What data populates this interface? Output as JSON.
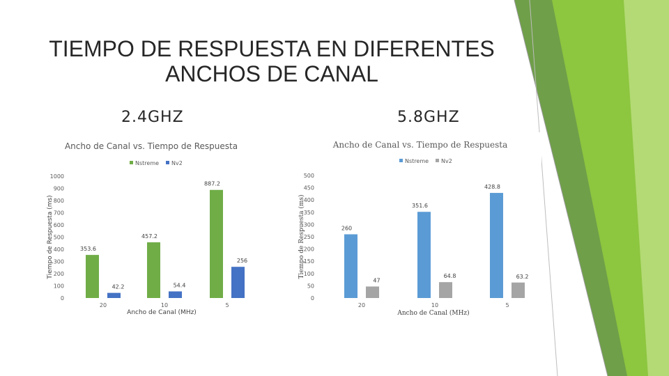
{
  "slide": {
    "title_line1": "TIEMPO DE RESPUESTA EN DIFERENTES",
    "title_line2": "ANCHOS DE CANAL",
    "subtitle_left": "2.4GHZ",
    "subtitle_right": "5.8GHZ",
    "accent_colors": [
      "#8dc63f",
      "#6fa33c",
      "#b7dc7a"
    ]
  },
  "chart_data": [
    {
      "type": "bar",
      "title": "Ancho de Canal vs. Tiempo de Respuesta",
      "xlabel": "Ancho de Canal (MHz)",
      "ylabel": "Tiempo de Respuesta (ms)",
      "categories": [
        "20",
        "10",
        "5"
      ],
      "ylim": [
        0,
        1000
      ],
      "yticks": [
        0,
        100,
        200,
        300,
        400,
        500,
        600,
        700,
        800,
        900,
        1000
      ],
      "legend": "top-center",
      "grid": false,
      "series": [
        {
          "name": "Nstreme",
          "color": "#70ad47",
          "values": [
            353.6,
            457.2,
            887.2
          ],
          "labels": [
            "353.6",
            "457.2",
            "887.2"
          ]
        },
        {
          "name": "Nv2",
          "color": "#4472c4",
          "values": [
            42.2,
            54.4,
            256
          ],
          "labels": [
            "42.2",
            "54.4",
            "256"
          ]
        }
      ]
    },
    {
      "type": "bar",
      "title": "Ancho de Canal vs. Tiempo de Respuesta",
      "xlabel": "Ancho de Canal (MHz)",
      "ylabel": "Tiempo de Respuesta (ms)",
      "categories": [
        "20",
        "10",
        "5"
      ],
      "ylim": [
        0,
        500
      ],
      "yticks": [
        0,
        50,
        100,
        150,
        200,
        250,
        300,
        350,
        400,
        450,
        500
      ],
      "legend": "top-right",
      "grid": false,
      "series": [
        {
          "name": "Nstreme",
          "color": "#5b9bd5",
          "values": [
            260,
            351.6,
            428.8
          ],
          "labels": [
            "260",
            "351.6",
            "428.8"
          ]
        },
        {
          "name": "Nv2",
          "color": "#a5a5a5",
          "values": [
            47,
            64.8,
            63.2
          ],
          "labels": [
            "47",
            "64.8",
            "63.2"
          ]
        }
      ]
    }
  ]
}
